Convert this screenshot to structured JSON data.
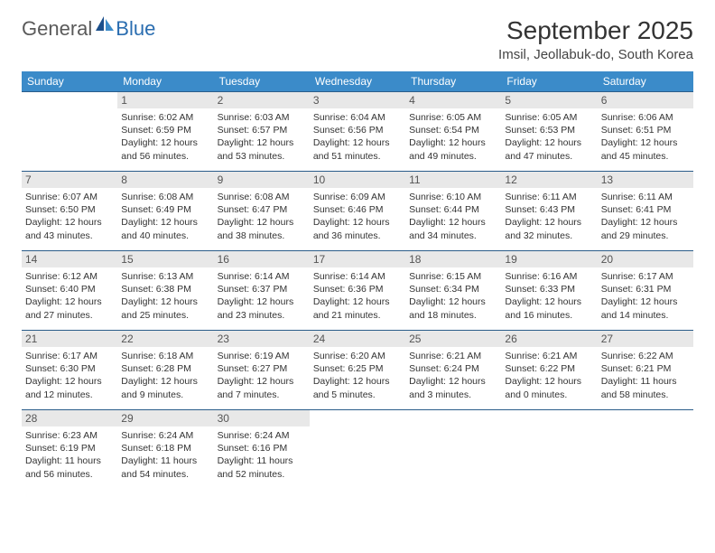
{
  "brand": {
    "text1": "General",
    "text2": "Blue"
  },
  "title": "September 2025",
  "location": "Imsil, Jeollabuk-do, South Korea",
  "colors": {
    "header_bg": "#3b8bc9",
    "header_text": "#ffffff",
    "daynum_bg": "#e8e8e8",
    "cell_border": "#2b5d8a",
    "logo_gray": "#5a5a5a",
    "logo_blue": "#2a6db0"
  },
  "weekdays": [
    "Sunday",
    "Monday",
    "Tuesday",
    "Wednesday",
    "Thursday",
    "Friday",
    "Saturday"
  ],
  "weeks": [
    [
      null,
      {
        "n": "1",
        "sr": "Sunrise: 6:02 AM",
        "ss": "Sunset: 6:59 PM",
        "dl": "Daylight: 12 hours and 56 minutes."
      },
      {
        "n": "2",
        "sr": "Sunrise: 6:03 AM",
        "ss": "Sunset: 6:57 PM",
        "dl": "Daylight: 12 hours and 53 minutes."
      },
      {
        "n": "3",
        "sr": "Sunrise: 6:04 AM",
        "ss": "Sunset: 6:56 PM",
        "dl": "Daylight: 12 hours and 51 minutes."
      },
      {
        "n": "4",
        "sr": "Sunrise: 6:05 AM",
        "ss": "Sunset: 6:54 PM",
        "dl": "Daylight: 12 hours and 49 minutes."
      },
      {
        "n": "5",
        "sr": "Sunrise: 6:05 AM",
        "ss": "Sunset: 6:53 PM",
        "dl": "Daylight: 12 hours and 47 minutes."
      },
      {
        "n": "6",
        "sr": "Sunrise: 6:06 AM",
        "ss": "Sunset: 6:51 PM",
        "dl": "Daylight: 12 hours and 45 minutes."
      }
    ],
    [
      {
        "n": "7",
        "sr": "Sunrise: 6:07 AM",
        "ss": "Sunset: 6:50 PM",
        "dl": "Daylight: 12 hours and 43 minutes."
      },
      {
        "n": "8",
        "sr": "Sunrise: 6:08 AM",
        "ss": "Sunset: 6:49 PM",
        "dl": "Daylight: 12 hours and 40 minutes."
      },
      {
        "n": "9",
        "sr": "Sunrise: 6:08 AM",
        "ss": "Sunset: 6:47 PM",
        "dl": "Daylight: 12 hours and 38 minutes."
      },
      {
        "n": "10",
        "sr": "Sunrise: 6:09 AM",
        "ss": "Sunset: 6:46 PM",
        "dl": "Daylight: 12 hours and 36 minutes."
      },
      {
        "n": "11",
        "sr": "Sunrise: 6:10 AM",
        "ss": "Sunset: 6:44 PM",
        "dl": "Daylight: 12 hours and 34 minutes."
      },
      {
        "n": "12",
        "sr": "Sunrise: 6:11 AM",
        "ss": "Sunset: 6:43 PM",
        "dl": "Daylight: 12 hours and 32 minutes."
      },
      {
        "n": "13",
        "sr": "Sunrise: 6:11 AM",
        "ss": "Sunset: 6:41 PM",
        "dl": "Daylight: 12 hours and 29 minutes."
      }
    ],
    [
      {
        "n": "14",
        "sr": "Sunrise: 6:12 AM",
        "ss": "Sunset: 6:40 PM",
        "dl": "Daylight: 12 hours and 27 minutes."
      },
      {
        "n": "15",
        "sr": "Sunrise: 6:13 AM",
        "ss": "Sunset: 6:38 PM",
        "dl": "Daylight: 12 hours and 25 minutes."
      },
      {
        "n": "16",
        "sr": "Sunrise: 6:14 AM",
        "ss": "Sunset: 6:37 PM",
        "dl": "Daylight: 12 hours and 23 minutes."
      },
      {
        "n": "17",
        "sr": "Sunrise: 6:14 AM",
        "ss": "Sunset: 6:36 PM",
        "dl": "Daylight: 12 hours and 21 minutes."
      },
      {
        "n": "18",
        "sr": "Sunrise: 6:15 AM",
        "ss": "Sunset: 6:34 PM",
        "dl": "Daylight: 12 hours and 18 minutes."
      },
      {
        "n": "19",
        "sr": "Sunrise: 6:16 AM",
        "ss": "Sunset: 6:33 PM",
        "dl": "Daylight: 12 hours and 16 minutes."
      },
      {
        "n": "20",
        "sr": "Sunrise: 6:17 AM",
        "ss": "Sunset: 6:31 PM",
        "dl": "Daylight: 12 hours and 14 minutes."
      }
    ],
    [
      {
        "n": "21",
        "sr": "Sunrise: 6:17 AM",
        "ss": "Sunset: 6:30 PM",
        "dl": "Daylight: 12 hours and 12 minutes."
      },
      {
        "n": "22",
        "sr": "Sunrise: 6:18 AM",
        "ss": "Sunset: 6:28 PM",
        "dl": "Daylight: 12 hours and 9 minutes."
      },
      {
        "n": "23",
        "sr": "Sunrise: 6:19 AM",
        "ss": "Sunset: 6:27 PM",
        "dl": "Daylight: 12 hours and 7 minutes."
      },
      {
        "n": "24",
        "sr": "Sunrise: 6:20 AM",
        "ss": "Sunset: 6:25 PM",
        "dl": "Daylight: 12 hours and 5 minutes."
      },
      {
        "n": "25",
        "sr": "Sunrise: 6:21 AM",
        "ss": "Sunset: 6:24 PM",
        "dl": "Daylight: 12 hours and 3 minutes."
      },
      {
        "n": "26",
        "sr": "Sunrise: 6:21 AM",
        "ss": "Sunset: 6:22 PM",
        "dl": "Daylight: 12 hours and 0 minutes."
      },
      {
        "n": "27",
        "sr": "Sunrise: 6:22 AM",
        "ss": "Sunset: 6:21 PM",
        "dl": "Daylight: 11 hours and 58 minutes."
      }
    ],
    [
      {
        "n": "28",
        "sr": "Sunrise: 6:23 AM",
        "ss": "Sunset: 6:19 PM",
        "dl": "Daylight: 11 hours and 56 minutes."
      },
      {
        "n": "29",
        "sr": "Sunrise: 6:24 AM",
        "ss": "Sunset: 6:18 PM",
        "dl": "Daylight: 11 hours and 54 minutes."
      },
      {
        "n": "30",
        "sr": "Sunrise: 6:24 AM",
        "ss": "Sunset: 6:16 PM",
        "dl": "Daylight: 11 hours and 52 minutes."
      },
      null,
      null,
      null,
      null
    ]
  ]
}
